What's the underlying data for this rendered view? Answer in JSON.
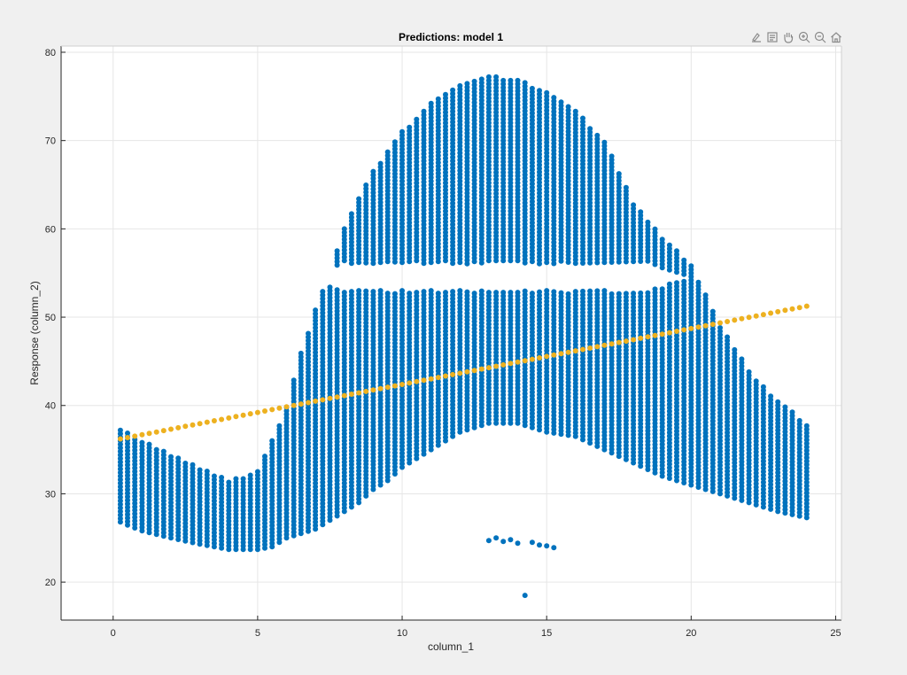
{
  "chart_data": {
    "type": "scatter",
    "title": "Predictions: model 1",
    "xlabel": "column_1",
    "ylabel": "Response (column_2)",
    "xlim": [
      -1.8,
      25.2
    ],
    "ylim": [
      15.7,
      80.7
    ],
    "xticks": [
      0,
      5,
      10,
      15,
      20,
      25
    ],
    "yticks": [
      20,
      30,
      40,
      50,
      60,
      70,
      80
    ],
    "grid": true,
    "legend": "none",
    "colors": {
      "observed": "#0072bd",
      "predicted": "#edb120",
      "background": "#f0f0f0",
      "axes_bg": "#ffffff",
      "grid": "#e6e6e6"
    },
    "series": [
      {
        "marker": "dot",
        "color": "#0072bd",
        "x_start": 0.25,
        "x_step": 0.25,
        "x_end": 24.0,
        "profile": [
          [
            0.25,
            26.8,
            37.5
          ],
          [
            1,
            25.8,
            36.0
          ],
          [
            2,
            25.0,
            34.5
          ],
          [
            3,
            24.3,
            33.0
          ],
          [
            4,
            23.7,
            31.5
          ],
          [
            5,
            23.7,
            32.5
          ],
          [
            5.5,
            24.0,
            36.0
          ],
          [
            6,
            25.0,
            40.0
          ],
          [
            6.5,
            25.5,
            46.0
          ],
          [
            7,
            26.0,
            51.0
          ],
          [
            7.5,
            27.0,
            55.0
          ],
          [
            8,
            28.0,
            60.0
          ],
          [
            8.5,
            29.0,
            63.5
          ],
          [
            9,
            30.5,
            66.5
          ],
          [
            9.5,
            31.5,
            69.0
          ],
          [
            10,
            33.0,
            71.0
          ],
          [
            11,
            35.0,
            74.5
          ],
          [
            12,
            37.0,
            76.5
          ],
          [
            13,
            38.0,
            77.3
          ],
          [
            14,
            38.0,
            77.0
          ],
          [
            15,
            37.0,
            75.5
          ],
          [
            16,
            36.5,
            73.5
          ],
          [
            17,
            35.0,
            70.0
          ],
          [
            18,
            33.5,
            63.0
          ],
          [
            19,
            32.0,
            59.0
          ],
          [
            20,
            31.0,
            56.0
          ],
          [
            21,
            30.0,
            49.0
          ],
          [
            22,
            29.0,
            44.0
          ],
          [
            23,
            28.0,
            40.5
          ],
          [
            24,
            27.3,
            38.0
          ]
        ],
        "gap": {
          "x_from": 6.8,
          "x_to": 20.0,
          "lower": 53.0,
          "upper": 56.0,
          "x_fade": [
            8.0,
            18.5
          ]
        },
        "outliers": [
          [
            13.0,
            24.7
          ],
          [
            13.25,
            25.0
          ],
          [
            13.5,
            24.6
          ],
          [
            13.75,
            24.8
          ],
          [
            14.0,
            24.4
          ],
          [
            14.5,
            24.5
          ],
          [
            14.75,
            24.2
          ],
          [
            15.0,
            24.1
          ],
          [
            15.25,
            23.9
          ],
          [
            14.25,
            18.5
          ]
        ]
      },
      {
        "marker": "dot",
        "color": "#edb120",
        "x_start": 0.25,
        "x_step": 0.25,
        "x_end": 24.0,
        "intercept": 36.05,
        "slope": 0.6333
      }
    ]
  },
  "toolbar": {
    "icons": [
      "brush-icon",
      "datatip-icon",
      "pan-hand-icon",
      "zoom-in-icon",
      "zoom-out-icon",
      "home-icon"
    ]
  }
}
